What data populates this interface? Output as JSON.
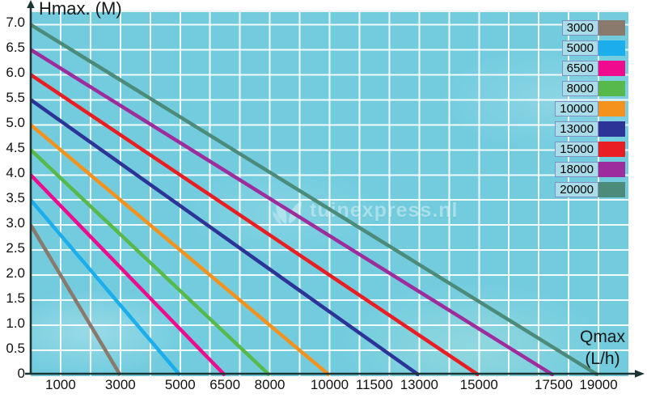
{
  "axes": {
    "y_title": "Hmax. (M)",
    "x_title_line1": "Qmax",
    "x_title_line2": "(L/h)"
  },
  "watermark": {
    "text": "tuinexpress.nl",
    "logo": "leaf-icon"
  },
  "colors": {
    "plot_background": "#72ccde",
    "gridline": "#ffffff",
    "axis_line": "#1d3434",
    "tick_text": "#121212",
    "legend_label_bg": "#a8dde9",
    "legend_label_border": "#8090c4"
  },
  "chart_data": {
    "type": "line",
    "title": "",
    "xlabel": "Qmax (L/h)",
    "ylabel": "Hmax. (M)",
    "xlim": [
      0,
      20000
    ],
    "ylim": [
      0,
      7.25
    ],
    "grid": true,
    "grid_step_x": 1000,
    "grid_step_y": 0.5,
    "legend_position": "top-right",
    "x_ticks": [
      1000,
      3000,
      5000,
      6500,
      8000,
      10000,
      11500,
      13000,
      15000,
      17500,
      19000
    ],
    "y_ticks": [
      {
        "value": 0,
        "label": "0"
      },
      {
        "value": 0.5,
        "label": "0.5"
      },
      {
        "value": 1.0,
        "label": "1.0"
      },
      {
        "value": 1.5,
        "label": "1.5"
      },
      {
        "value": 2.0,
        "label": "2.0"
      },
      {
        "value": 2.5,
        "label": "2.5"
      },
      {
        "value": 3.0,
        "label": "3.0"
      },
      {
        "value": 3.5,
        "label": "3.5"
      },
      {
        "value": 4.0,
        "label": "4.0"
      },
      {
        "value": 4.5,
        "label": "4.5"
      },
      {
        "value": 5.0,
        "label": "5.0"
      },
      {
        "value": 5.5,
        "label": "5.5"
      },
      {
        "value": 6.0,
        "label": "6.0"
      },
      {
        "value": 6.5,
        "label": "6.5"
      },
      {
        "value": 7.0,
        "label": "7.0"
      }
    ],
    "series": [
      {
        "name": "3000",
        "color": "#8a7a6e",
        "hmax": 3.0,
        "qmax": 3000,
        "points": [
          [
            0,
            3.0
          ],
          [
            3000,
            0
          ]
        ]
      },
      {
        "name": "5000",
        "color": "#1badec",
        "hmax": 3.5,
        "qmax": 5000,
        "points": [
          [
            0,
            3.5
          ],
          [
            5000,
            0
          ]
        ]
      },
      {
        "name": "6500",
        "color": "#ee0b8d",
        "hmax": 4.0,
        "qmax": 6500,
        "points": [
          [
            0,
            4.0
          ],
          [
            6500,
            0
          ]
        ]
      },
      {
        "name": "8000",
        "color": "#57b94b",
        "hmax": 4.5,
        "qmax": 8000,
        "points": [
          [
            0,
            4.5
          ],
          [
            8000,
            0
          ]
        ]
      },
      {
        "name": "10000",
        "color": "#f5921e",
        "hmax": 5.0,
        "qmax": 10000,
        "points": [
          [
            0,
            5.0
          ],
          [
            10000,
            0
          ]
        ]
      },
      {
        "name": "13000",
        "color": "#2c3597",
        "hmax": 5.5,
        "qmax": 13000,
        "points": [
          [
            0,
            5.5
          ],
          [
            13000,
            0
          ]
        ]
      },
      {
        "name": "15000",
        "color": "#e81e24",
        "hmax": 6.0,
        "qmax": 15000,
        "points": [
          [
            0,
            6.0
          ],
          [
            15000,
            0
          ]
        ]
      },
      {
        "name": "18000",
        "color": "#9d2d9d",
        "hmax": 6.5,
        "qmax": 17500,
        "points": [
          [
            0,
            6.5
          ],
          [
            17500,
            0
          ]
        ]
      },
      {
        "name": "20000",
        "color": "#4c8a79",
        "hmax": 7.0,
        "qmax": 19000,
        "points": [
          [
            0,
            7.0
          ],
          [
            19000,
            0
          ]
        ]
      }
    ]
  }
}
